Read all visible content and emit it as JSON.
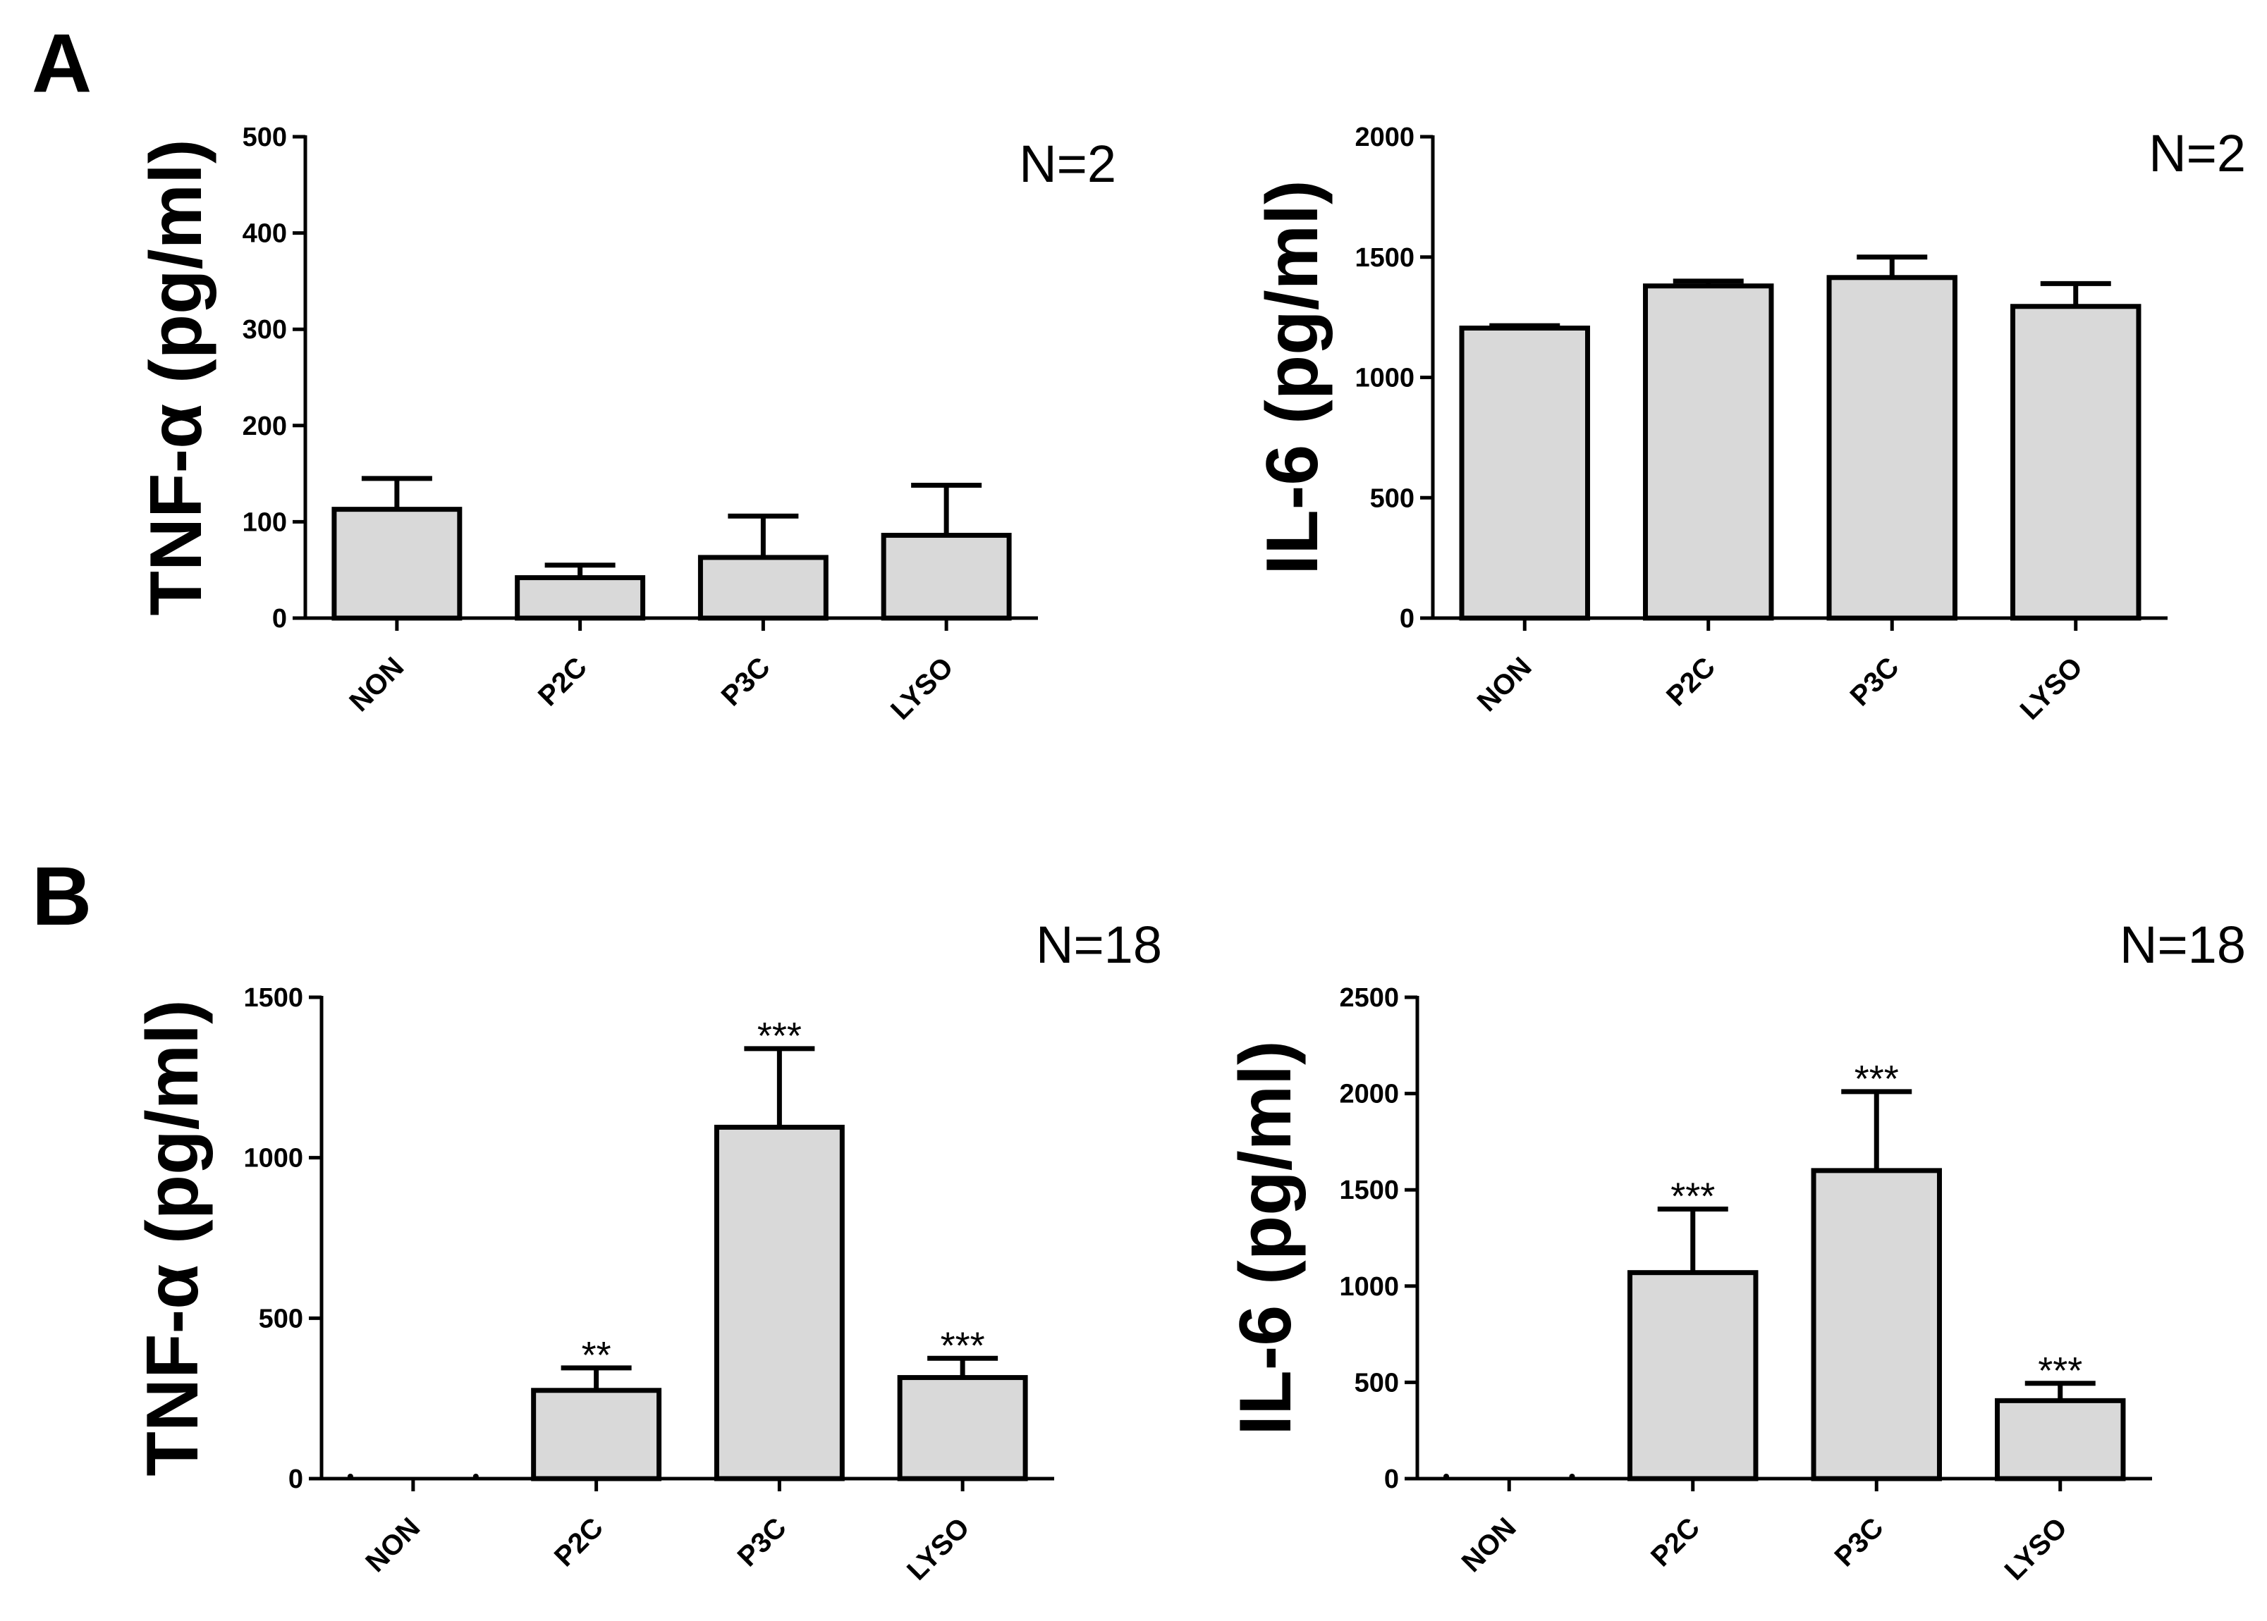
{
  "panels": [
    {
      "label": "A"
    },
    {
      "label": "B"
    }
  ],
  "chart_data": [
    {
      "type": "bar",
      "panel": "A",
      "ylabel": "TNF-α (pg/ml)",
      "xlabel": "",
      "categories": [
        "NON",
        "P2C",
        "P3C",
        "LYSO"
      ],
      "values": [
        113,
        42,
        63,
        86
      ],
      "errors": [
        32,
        13,
        43,
        52
      ],
      "significance": [
        "",
        "",
        "",
        ""
      ],
      "ylim": [
        0,
        500
      ],
      "yticks": [
        0,
        100,
        200,
        300,
        400,
        500
      ],
      "annotation": "N=2",
      "bar_color": "#d9d9d9",
      "edge_color": "#000000"
    },
    {
      "type": "bar",
      "panel": "A",
      "ylabel": "IL-6 (pg/ml)",
      "xlabel": "",
      "categories": [
        "NON",
        "P2C",
        "P3C",
        "LYSO"
      ],
      "values": [
        1205,
        1380,
        1415,
        1295
      ],
      "errors": [
        10,
        20,
        85,
        95
      ],
      "significance": [
        "",
        "",
        "",
        ""
      ],
      "ylim": [
        0,
        2000
      ],
      "yticks": [
        0,
        500,
        1000,
        1500,
        2000
      ],
      "annotation": "N=2",
      "bar_color": "#d9d9d9",
      "edge_color": "#000000"
    },
    {
      "type": "bar",
      "panel": "B",
      "ylabel": "TNF-α (pg/ml)",
      "xlabel": "",
      "categories": [
        "NON",
        "P2C",
        "P3C",
        "LYSO"
      ],
      "values": [
        0,
        275,
        1095,
        315
      ],
      "errors": [
        0,
        70,
        245,
        60
      ],
      "significance": [
        "",
        "**",
        "***",
        "***"
      ],
      "ylim": [
        0,
        1500
      ],
      "yticks": [
        0,
        500,
        1000,
        1500
      ],
      "annotation": "N=18",
      "bar_color": "#d9d9d9",
      "edge_color": "#000000"
    },
    {
      "type": "bar",
      "panel": "B",
      "ylabel": "IL-6 (pg/ml)",
      "xlabel": "",
      "categories": [
        "NON",
        "P2C",
        "P3C",
        "LYSO"
      ],
      "values": [
        0,
        1070,
        1600,
        405
      ],
      "errors": [
        0,
        330,
        410,
        90
      ],
      "significance": [
        "",
        "***",
        "***",
        "***"
      ],
      "ylim": [
        0,
        2500
      ],
      "yticks": [
        0,
        500,
        1000,
        1500,
        2000,
        2500
      ],
      "annotation": "N=18",
      "bar_color": "#d9d9d9",
      "edge_color": "#000000"
    }
  ]
}
